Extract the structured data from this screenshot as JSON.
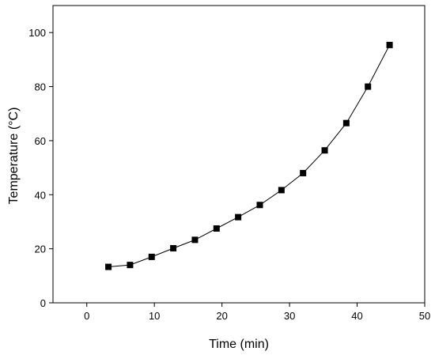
{
  "chart_data": {
    "type": "line",
    "title": "",
    "xlabel": "Time (min)",
    "ylabel": "Temperature (°C)",
    "xlim": [
      -5,
      50
    ],
    "ylim": [
      0,
      110
    ],
    "x_ticks": [
      0,
      10,
      20,
      30,
      40,
      50
    ],
    "y_ticks": [
      0,
      20,
      40,
      60,
      80,
      100
    ],
    "grid": false,
    "marker": "square",
    "series": [
      {
        "x": [
          3.2,
          6.4,
          9.6,
          12.8,
          16.0,
          19.2,
          22.4,
          25.6,
          28.8,
          32.0,
          35.2,
          38.4,
          41.6,
          44.8
        ],
        "y": [
          13.3,
          14.0,
          17.0,
          20.2,
          23.3,
          27.5,
          31.7,
          36.2,
          41.7,
          48.0,
          56.4,
          66.5,
          80.0,
          95.4
        ]
      }
    ]
  }
}
